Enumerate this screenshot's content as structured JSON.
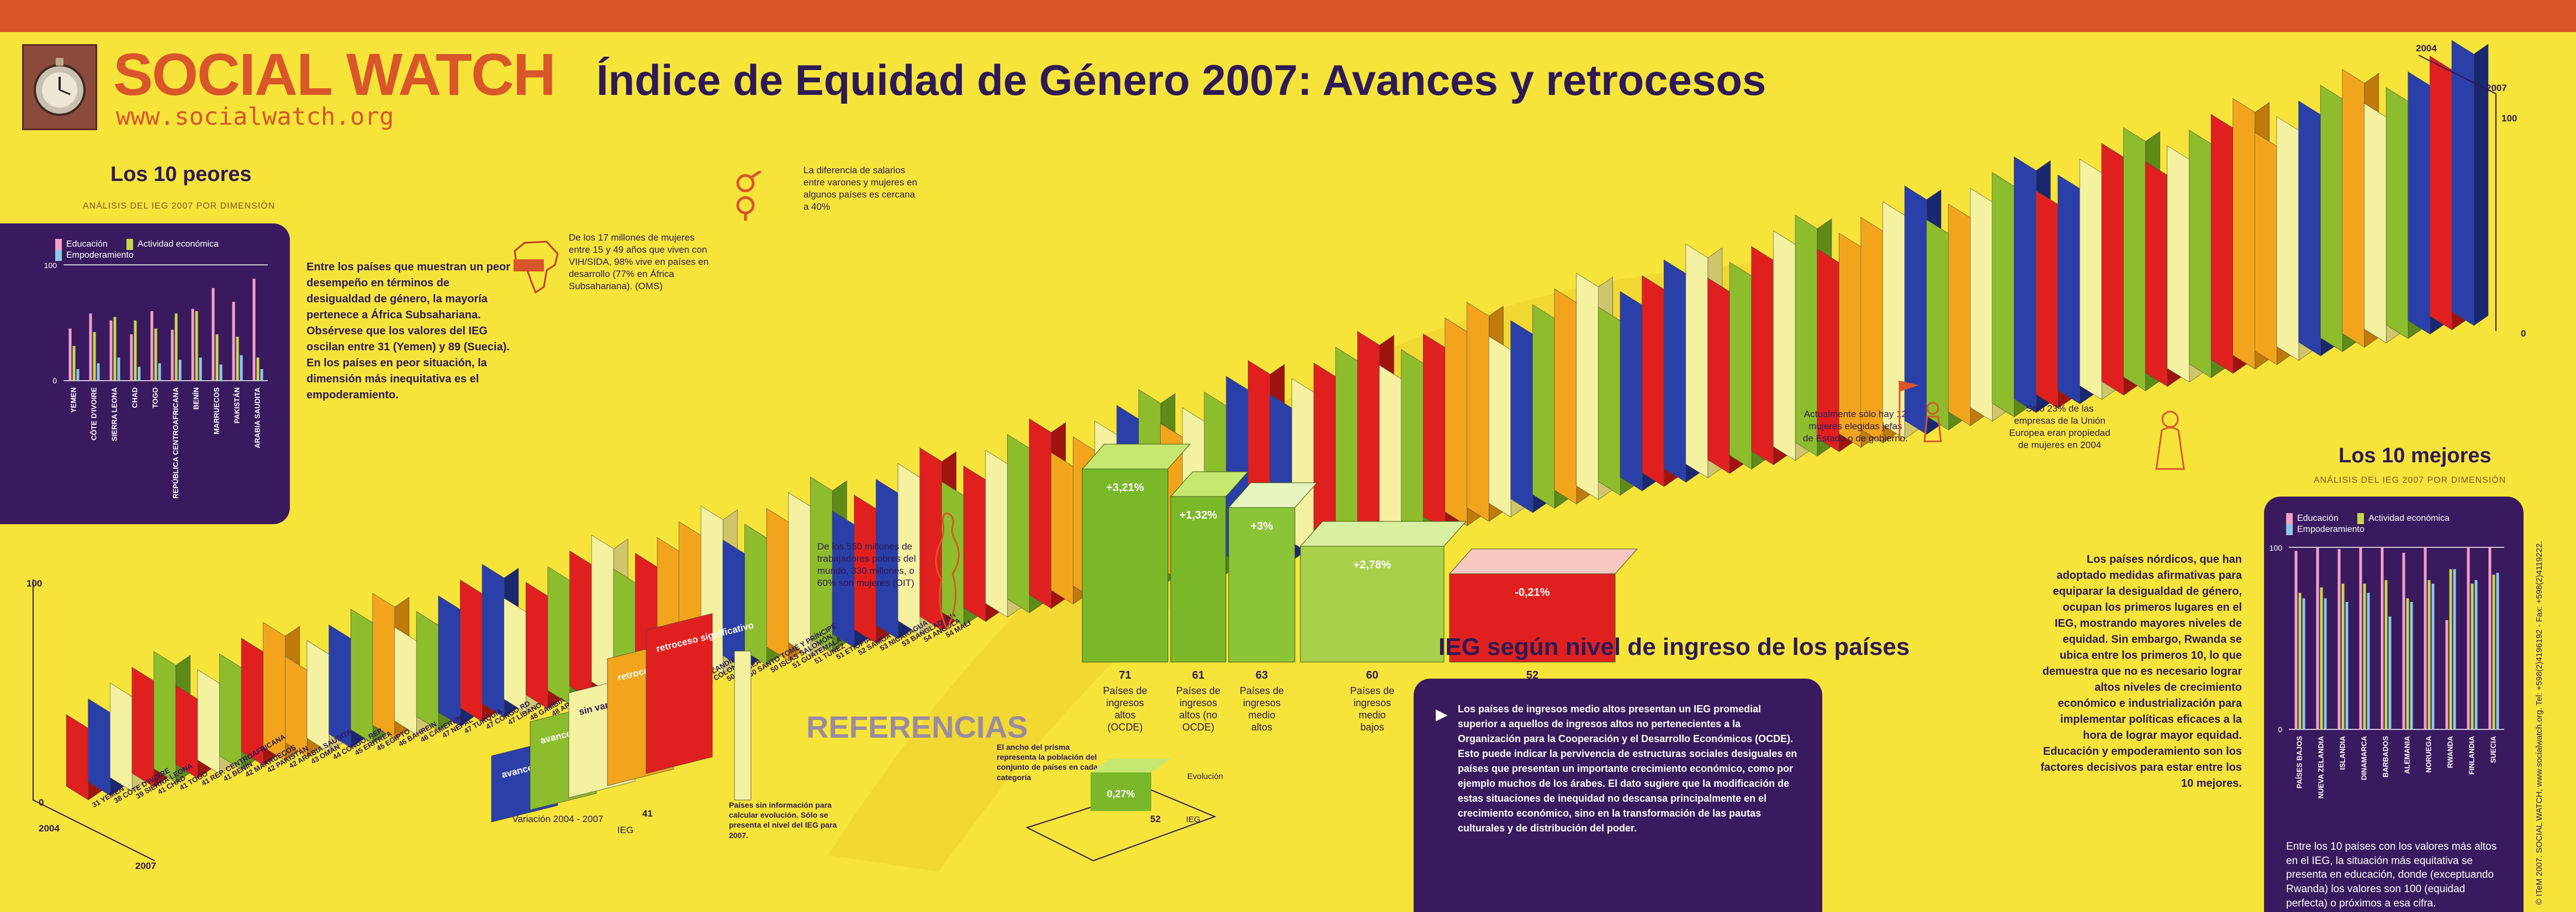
{
  "header": {
    "brand": "SOCIAL WATCH",
    "url": "www.socialwatch.org",
    "title": "Índice de Equidad de Género 2007: Avances y retrocesos"
  },
  "worst": {
    "title": "Los 10 peores",
    "subtitle": "ANÁLISIS DEL IEG 2007 POR DIMENSIÓN",
    "legend": [
      "Educación",
      "Actividad económica",
      "Empoderamiento"
    ],
    "y_max": "100",
    "y_min": "0",
    "paragraph1": "Entre los países que muestran un peor desempeño en términos de desigualdad de género, la mayoría pertenece a África Subsahariana. Obsérvese que los valores del IEG oscilan entre 31 (Yemen) y 89 (Suecia).",
    "paragraph2": "En los países en peor situación, la dimensión más inequitativa es el empoderamiento."
  },
  "best": {
    "title": "Los 10 mejores",
    "subtitle": "ANÁLISIS DEL IEG 2007 POR DIMENSIÓN",
    "legend": [
      "Educación",
      "Actividad económica",
      "Empoderamiento"
    ],
    "y_max": "100",
    "y_min": "0",
    "paragraph": "Los países nórdicos, que han adoptado medidas afirmativas para equiparar la desigualdad de género, ocupan los primeros lugares en el IEG, mostrando mayores niveles de equidad. Sin embargo, Rwanda se ubica entre los primeros 10, lo que demuestra que no es necesario lograr altos niveles de crecimiento económico e industrialización para implementar políticas eficaces a la hora de lograr mayor equidad. Educación y empoderamiento son los factores decisivos para estar entre los 10 mejores.",
    "note": "Entre los 10 países con los valores más altos en el IEG, la situación más equitativa se presenta en educación, donde (exceptuando Rwanda) los valores son 100 (equidad perfecta) o próximos a esa cifra."
  },
  "income": {
    "title": "IEG según nivel de ingreso de los países",
    "paragraph": "Los países de ingresos medio altos presentan un IEG promedial superior a aquellos de ingresos altos no pertenecientes a la Organización para la Cooperación y el Desarrollo Económicos (OCDE). Esto puede indicar la pervivencia de estructuras sociales desiguales en países que presentan un importante crecimiento económico, como por ejemplo muchos de los árabes. El dato sugiere que la modificación de estas situaciones de inequidad no descansa principalmente en el crecimiento económico, sino en la transformación de las pautas culturales y de distribución del poder."
  },
  "references": {
    "title": "REFERENCIAS",
    "labels": [
      "avance significativo",
      "avance leve",
      "sin variaciones",
      "retroceso leve",
      "retroceso significativo"
    ],
    "axis_variation": "Variación 2004 - 2007",
    "axis_ieg": "IEG",
    "ieg_sample": "41",
    "no_info_note": "Países sin información para calcular evolución. Sólo se presenta el nivel del IEG para 2007.",
    "prism_note": "El ancho del prisma representa la población del conjunto de países en cada categoría",
    "prism_value": "52",
    "prism_change": "0,27%",
    "prism_evol": "Evolución",
    "prism_ieg": "IEG"
  },
  "notes": {
    "aids": "De los 17 millones de mujeres entre 15 y 49 años que viven con VIH/SIDA, 98% vive en países en desarrollo (77% en África Subsahariana). (OMS)",
    "wage": "La diferencia de salarios entre varones y mujeres en algunos países es cercana a 40%",
    "poor": "De los 550 millones de trabajadores pobres del mundo, 330 millones, o 60% son mujeres (OIT)",
    "heads": "Actualmente sólo hay 12 mujeres elegidas jefas de Estado o de gobierno.",
    "companies": "Sólo 23% de las empresas de la Unión Europea eran propiedad de mujeres en 2004"
  },
  "axis_labels": {
    "y_top_left": "100",
    "y_bottom_left": "0",
    "year_start_left": "2004",
    "year_end_left": "2007",
    "year_start_right": "2004",
    "year_end_right": "2007",
    "y_top_right": "100",
    "y_bottom_right": "0"
  },
  "footer_credit": "© ITeM 2007. SOCIAL WATCH, www.socialwatch.org. Tel: +598(2)4196192 - Fax: +598(2)4119222.",
  "colors": {
    "sig_adv": "#2b3fa8",
    "light_adv": "#8dbd2c",
    "no_change": "#f4f1a0",
    "light_ret": "#f2a51c",
    "sig_ret": "#e0201f",
    "panel": "#3a1a5e"
  },
  "chart_data": [
    {
      "type": "bar",
      "title": "Los 10 peores",
      "categories": [
        "YEMEN",
        "CÔTE D'IVOIRE",
        "SIERRA LEONA",
        "CHAD",
        "TOGO",
        "REPÚBLICA CENTROAFRICANA",
        "BENÍN",
        "MARRUECOS",
        "PAKISTÁN",
        "ARABIA SAUDITA"
      ],
      "series": [
        {
          "name": "Educación",
          "values": [
            45,
            58,
            52,
            40,
            60,
            44,
            62,
            80,
            68,
            88
          ]
        },
        {
          "name": "Actividad económica",
          "values": [
            30,
            42,
            55,
            52,
            45,
            58,
            60,
            40,
            38,
            20
          ]
        },
        {
          "name": "Empoderamiento",
          "values": [
            10,
            15,
            20,
            12,
            15,
            18,
            20,
            14,
            22,
            10
          ]
        }
      ],
      "ylim": [
        0,
        100
      ]
    },
    {
      "type": "bar",
      "title": "Los 10 mejores",
      "categories": [
        "PAÍSES BAJOS",
        "NUEVA ZELANDIA",
        "ISLANDIA",
        "DINAMARCA",
        "BARBADOS",
        "ALEMANIA",
        "NORUEGA",
        "RWANDA",
        "FINLANDIA",
        "SUECIA"
      ],
      "series": [
        {
          "name": "Educación",
          "values": [
            98,
            100,
            99,
            100,
            100,
            97,
            100,
            60,
            100,
            100
          ]
        },
        {
          "name": "Actividad económica",
          "values": [
            75,
            78,
            80,
            80,
            82,
            72,
            82,
            88,
            80,
            85
          ]
        },
        {
          "name": "Empoderamiento",
          "values": [
            72,
            72,
            70,
            75,
            62,
            70,
            80,
            88,
            82,
            86
          ]
        }
      ],
      "ylim": [
        0,
        100
      ]
    },
    {
      "type": "bar",
      "title": "IEG según nivel de ingreso de los países",
      "categories": [
        "Países de ingresos altos (OCDE)",
        "Países de ingresos altos (no OCDE)",
        "Países de ingresos medio altos",
        "Países de ingresos medio bajos",
        "Países de ingresos bajos"
      ],
      "series": [
        {
          "name": "IEG",
          "values": [
            71,
            61,
            63,
            60,
            52
          ]
        },
        {
          "name": "Evolución",
          "values": [
            "+3,21%",
            "+1,32%",
            "+3%",
            "+2,78%",
            "-0,21%"
          ]
        }
      ]
    },
    {
      "type": "table",
      "title": "Ranking IEG",
      "rows": [
        [
          "31",
          "YEMEN"
        ],
        [
          "38",
          "CÔTE D'IVOIRE"
        ],
        [
          "39",
          "SIERRA LEONA"
        ],
        [
          "41",
          "CHAD"
        ],
        [
          "41",
          "TOGO"
        ],
        [
          "41",
          "REP. CENTROAFRICANA"
        ],
        [
          "41",
          "BENÍN"
        ],
        [
          "42",
          "MARRUECOS"
        ],
        [
          "42",
          "PAKISTÁN"
        ],
        [
          "42",
          "ARABIA SAUDITA"
        ],
        [
          "43",
          "OMÁN"
        ],
        [
          "44",
          "CONGO, REP."
        ],
        [
          "45",
          "ERITREA"
        ],
        [
          "45",
          "EGIPTO"
        ],
        [
          "46",
          "BAHREIN"
        ],
        [
          "46",
          "CAMERÚN"
        ],
        [
          "47",
          "NEPAL"
        ],
        [
          "47",
          "TURQUÍA"
        ],
        [
          "47",
          "CONGO RD"
        ],
        [
          "47",
          "LÍBANO"
        ],
        [
          "48",
          "GAMBIA"
        ],
        [
          "48",
          "ARGELIA"
        ],
        [
          "48",
          "EMIRATOS ÁRABES UNIDOS"
        ],
        [
          "48",
          "QATAR"
        ],
        [
          "49",
          "SIRIA"
        ],
        [
          "49",
          "KUWAIT"
        ],
        [
          "49",
          "DJIBOUTI"
        ],
        [
          "49",
          "SWAZILANDIA"
        ],
        [
          "50",
          "COLOMBIA"
        ],
        [
          "50",
          "GUINEA"
        ],
        [
          "50",
          "SANTO TOMÉ Y PRÍNCIPE"
        ],
        [
          "50",
          "ISLAS SALOMÓN"
        ],
        [
          "51",
          "GUATEMALA"
        ],
        [
          "51",
          "TÚNEZ"
        ],
        [
          "51",
          "ETIOPÍA"
        ],
        [
          "52",
          "SAMOA"
        ],
        [
          "53",
          "NICARAGUA"
        ],
        [
          "53",
          "BANGLADESH"
        ],
        [
          "54",
          "ANGOLA"
        ],
        [
          "54",
          "MALI"
        ]
      ]
    }
  ]
}
